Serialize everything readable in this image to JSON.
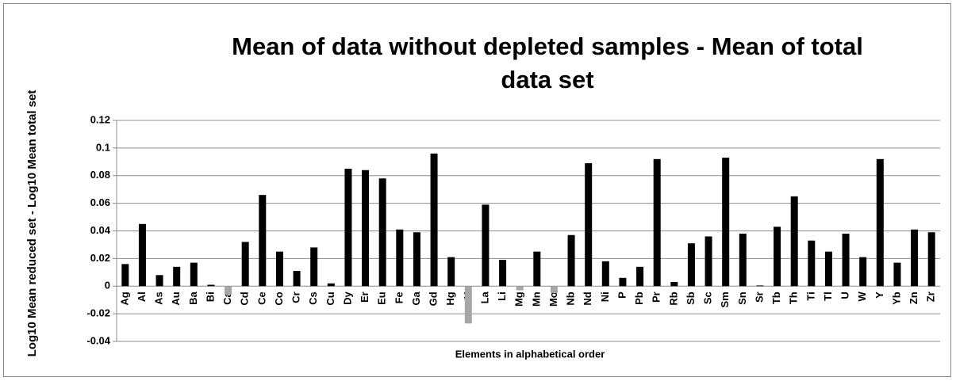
{
  "chart_data": {
    "type": "bar",
    "title": "Mean of data without depleted samples - Mean of total data set",
    "x_label": "Elements in alphabetical order",
    "y_label": "Log10 Mean reduced set - Log10 Mean total set",
    "categories": [
      "Ag",
      "Al",
      "As",
      "Au",
      "Ba",
      "Bi",
      "Ca",
      "Cd",
      "Ce",
      "Co",
      "Cr",
      "Cs",
      "Cu",
      "Dy",
      "Er",
      "Eu",
      "Fe",
      "Ga",
      "Gd",
      "Hg",
      "K",
      "La",
      "Li",
      "Mg",
      "Mn",
      "Mo",
      "Nb",
      "Nd",
      "Ni",
      "P",
      "Pb",
      "Pr",
      "Rb",
      "Sb",
      "Sc",
      "Sm",
      "Sn",
      "Sr",
      "Tb",
      "Th",
      "Ti",
      "Tl",
      "U",
      "W",
      "Y",
      "Yb",
      "Zn",
      "Zr"
    ],
    "values": [
      0.016,
      0.045,
      0.008,
      0.014,
      0.017,
      0.001,
      -0.006,
      0.032,
      0.066,
      0.025,
      0.011,
      0.028,
      0.002,
      0.085,
      0.084,
      0.078,
      0.041,
      0.039,
      0.096,
      0.021,
      -0.027,
      0.059,
      0.019,
      -0.003,
      0.025,
      -0.005,
      0.037,
      0.089,
      0.018,
      0.006,
      0.014,
      0.092,
      0.003,
      0.031,
      0.036,
      0.093,
      0.038,
      0.0005,
      0.043,
      0.065,
      0.033,
      0.025,
      0.038,
      0.021,
      0.092,
      0.017,
      0.041,
      0.039
    ],
    "color": "#000000",
    "negative_color": "#a6a6a6",
    "ylim": [
      -0.04,
      0.12
    ],
    "yticks": [
      -0.04,
      -0.02,
      0,
      0.02,
      0.04,
      0.06,
      0.08,
      0.1,
      0.12
    ],
    "grid": true
  }
}
